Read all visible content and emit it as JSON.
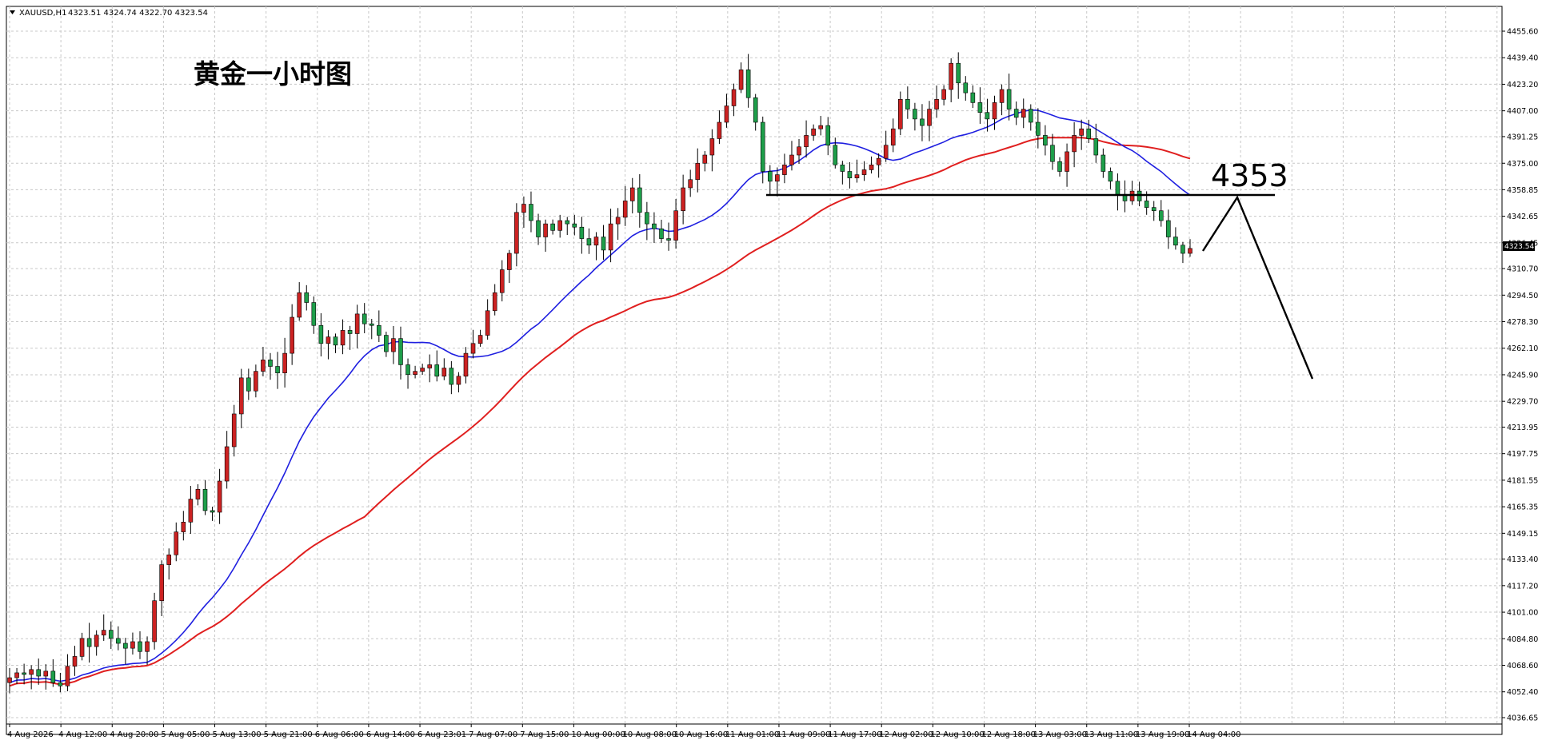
{
  "header": {
    "dropdown_icon": "triangle-down-icon",
    "symbol": "XAUUSD,H1",
    "ohlc": "4323.51 4324.74 4322.70 4323.54"
  },
  "chart_data": {
    "type": "candlestick",
    "title": "黄金一小时图",
    "annotation": "4353",
    "current_price": "4323.54",
    "y_range": [
      4028.0,
      4465.0
    ],
    "y_ticks": [
      "4455.60",
      "4439.40",
      "4423.20",
      "4407.00",
      "4391.25",
      "4375.00",
      "4358.85",
      "4342.65",
      "4326.45",
      "4310.70",
      "4294.50",
      "4278.30",
      "4262.10",
      "4245.90",
      "4229.70",
      "4213.95",
      "4197.75",
      "4181.55",
      "4165.35",
      "4149.15",
      "4133.40",
      "4117.20",
      "4101.00",
      "4084.80",
      "4068.60",
      "4052.40",
      "4036.65"
    ],
    "x_ticks": [
      "4 Aug 2026",
      "4 Aug 12:00",
      "4 Aug 20:00",
      "5 Aug 05:00",
      "5 Aug 13:00",
      "5 Aug 21:00",
      "6 Aug 06:00",
      "6 Aug 14:00",
      "6 Aug 23:01",
      "7 Aug 07:00",
      "7 Aug 15:00",
      "10 Aug 00:00",
      "10 Aug 08:00",
      "10 Aug 16:00",
      "11 Aug 01:00",
      "11 Aug 09:00",
      "11 Aug 17:00",
      "12 Aug 02:00",
      "12 Aug 10:00",
      "12 Aug 18:00",
      "13 Aug 03:00",
      "13 Aug 11:00",
      "13 Aug 19:00",
      "14 Aug 04:00"
    ],
    "grid": true,
    "support_level": 4353,
    "candle_closes": [
      4061,
      4064,
      4063,
      4066,
      4062,
      4065,
      4058,
      4056,
      4068,
      4074,
      4085,
      4080,
      4087,
      4090,
      4085,
      4082,
      4079,
      4083,
      4077,
      4083,
      4108,
      4130,
      4136,
      4150,
      4156,
      4170,
      4176,
      4163,
      4162,
      4181,
      4202,
      4222,
      4244,
      4236,
      4248,
      4255,
      4251,
      4247,
      4259,
      4281,
      4296,
      4290,
      4276,
      4265,
      4269,
      4264,
      4273,
      4271,
      4283,
      4277,
      4276,
      4270,
      4260,
      4268,
      4252,
      4246,
      4248,
      4250,
      4252,
      4245,
      4250,
      4240,
      4245,
      4259,
      4265,
      4270,
      4285,
      4296,
      4310,
      4320,
      4345,
      4350,
      4340,
      4330,
      4338,
      4334,
      4340,
      4338,
      4336,
      4329,
      4325,
      4330,
      4322,
      4338,
      4342,
      4352,
      4360,
      4345,
      4338,
      4335,
      4329,
      4328,
      4346,
      4360,
      4365,
      4375,
      4380,
      4390,
      4400,
      4410,
      4420,
      4432,
      4415,
      4400,
      4370,
      4364,
      4368,
      4374,
      4380,
      4385,
      4392,
      4396,
      4398,
      4386,
      4374,
      4370,
      4366,
      4368,
      4371,
      4374,
      4378,
      4386,
      4396,
      4414,
      4408,
      4402,
      4398,
      4408,
      4414,
      4420,
      4436,
      4424,
      4418,
      4412,
      4406,
      4402,
      4412,
      4420,
      4408,
      4403,
      4408,
      4400,
      4392,
      4386,
      4376,
      4370,
      4382,
      4392,
      4396,
      4390,
      4380,
      4370,
      4364,
      4356,
      4352,
      4358,
      4352,
      4348,
      4346,
      4340,
      4330,
      4325,
      4320,
      4323
    ]
  },
  "indicators": [
    {
      "color": "#1f1fe0",
      "type": "ma-fast"
    },
    {
      "color": "#e01f1f",
      "type": "ma-slow"
    }
  ],
  "colors": {
    "up": "#cc2222",
    "down": "#1e9e4a",
    "wick": "#000000",
    "grid": "#c8c8c8",
    "level_line": "#000000"
  }
}
